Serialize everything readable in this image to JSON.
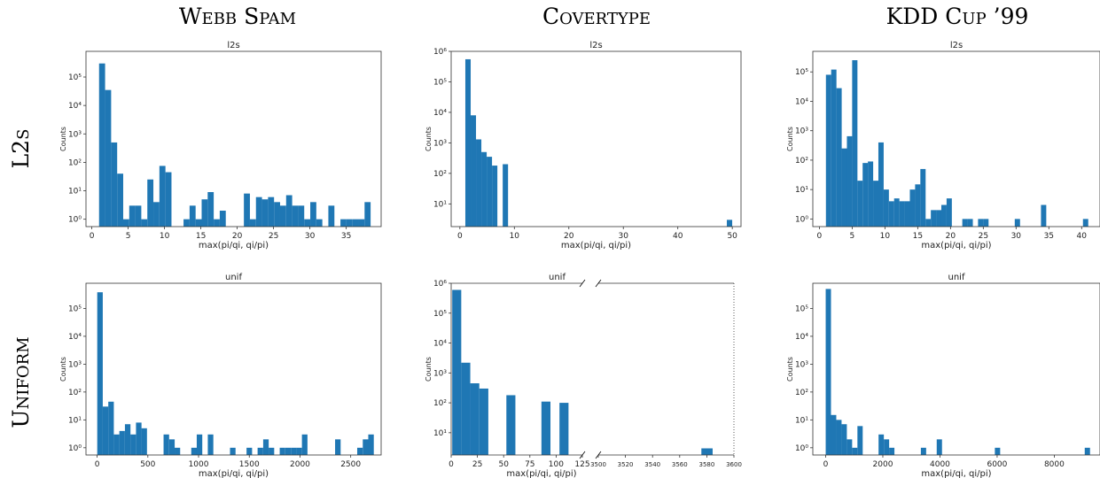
{
  "column_titles": [
    "Webb Spam",
    "Covertype",
    "KDD Cup ’99"
  ],
  "row_titles": [
    "L2s",
    "Uniform"
  ],
  "bar_color": "#1f77b4",
  "chart_data": [
    {
      "type": "bar",
      "title": "l2s",
      "xlabel": "max(pi/qi, qi/pi)",
      "ylabel": "Counts",
      "yscale": "log",
      "xlim": [
        -0.8,
        39.8
      ],
      "ylim": [
        0.55,
        800000
      ],
      "bin_width": 0.83,
      "xticks": [
        0,
        5,
        10,
        15,
        20,
        25,
        30,
        35
      ],
      "yticks": [
        1,
        10,
        100,
        1000,
        10000,
        100000
      ],
      "ytick_labels": [
        "10⁰",
        "10¹",
        "10²",
        "10³",
        "10⁴",
        "10⁵"
      ],
      "x": [
        1.0,
        1.83,
        2.66,
        3.49,
        4.32,
        5.15,
        5.98,
        6.81,
        7.64,
        8.47,
        9.3,
        10.13,
        12.62,
        13.45,
        14.28,
        15.11,
        15.94,
        16.77,
        17.6,
        20.92,
        21.75,
        22.58,
        23.41,
        24.24,
        25.07,
        25.9,
        26.73,
        27.56,
        28.39,
        29.22,
        30.05,
        30.88,
        32.54,
        34.2,
        35.03,
        35.86,
        36.69,
        37.52
      ],
      "values": [
        300000,
        35000,
        500,
        40,
        1,
        3,
        3,
        1,
        25,
        4,
        75,
        45,
        1,
        3,
        1,
        5,
        9,
        1,
        2,
        8,
        1,
        6,
        5,
        6,
        4,
        3,
        7,
        3,
        3,
        1,
        4,
        1,
        3,
        1,
        1,
        1,
        1,
        4
      ]
    },
    {
      "type": "bar",
      "title": "l2s",
      "xlabel": "max(pi/qi, qi/pi)",
      "ylabel": "Counts",
      "yscale": "log",
      "xlim": [
        -1.6,
        51.6
      ],
      "ylim": [
        1.8,
        1000000
      ],
      "bin_width": 0.98,
      "xticks": [
        0,
        10,
        20,
        30,
        40,
        50
      ],
      "yticks": [
        10,
        100,
        1000,
        10000,
        100000,
        1000000
      ],
      "ytick_labels": [
        "10¹",
        "10²",
        "10³",
        "10⁴",
        "10⁵",
        "10⁶"
      ],
      "x": [
        1.0,
        1.98,
        2.96,
        3.94,
        4.92,
        5.9,
        7.86,
        49.0
      ],
      "values": [
        550000,
        8000,
        1300,
        500,
        350,
        180,
        200,
        3
      ]
    },
    {
      "type": "bar",
      "title": "l2s",
      "xlabel": "max(pi/qi, qi/pi)",
      "ylabel": "Counts",
      "yscale": "log",
      "xlim": [
        -1.0,
        42.8
      ],
      "ylim": [
        0.55,
        500000
      ],
      "bin_width": 0.805,
      "xticks": [
        0,
        5,
        10,
        15,
        20,
        25,
        30,
        35,
        40
      ],
      "yticks": [
        1,
        10,
        100,
        1000,
        10000,
        100000
      ],
      "ytick_labels": [
        "10⁰",
        "10¹",
        "10²",
        "10³",
        "10⁴",
        "10⁵"
      ],
      "x": [
        1.0,
        1.8,
        2.6,
        3.4,
        4.2,
        5.0,
        5.8,
        6.6,
        7.4,
        8.2,
        9.0,
        9.8,
        10.6,
        11.4,
        12.2,
        13.0,
        13.8,
        14.6,
        15.4,
        16.2,
        17.0,
        17.8,
        18.6,
        19.4,
        21.8,
        22.6,
        24.2,
        25.0,
        29.8,
        33.8,
        40.2
      ],
      "values": [
        80000,
        120000,
        28000,
        250,
        650,
        250000,
        20,
        80,
        90,
        20,
        400,
        10,
        4,
        5,
        4,
        4,
        10,
        15,
        50,
        1,
        2,
        2,
        3,
        5,
        1,
        1,
        1,
        1,
        1,
        3,
        1
      ]
    },
    {
      "type": "bar",
      "title": "unif",
      "xlabel": "max(pi/qi, qi/pi)",
      "ylabel": "Counts",
      "yscale": "log",
      "xlim": [
        -110,
        2800
      ],
      "ylim": [
        0.55,
        800000
      ],
      "bin_width": 54.5,
      "xticks": [
        0,
        500,
        1000,
        1500,
        2000,
        2500
      ],
      "yticks": [
        1,
        10,
        100,
        1000,
        10000,
        100000
      ],
      "ytick_labels": [
        "10⁰",
        "10¹",
        "10²",
        "10³",
        "10⁴",
        "10⁵"
      ],
      "x": [
        1,
        56,
        110,
        165,
        219,
        274,
        328,
        383,
        437,
        655,
        710,
        764,
        928,
        982,
        1091,
        1310,
        1473,
        1582,
        1637,
        1691,
        1800,
        1855,
        1910,
        1964,
        2019,
        2346,
        2564,
        2619,
        2673
      ],
      "values": [
        380000,
        30,
        45,
        3,
        4,
        7,
        3,
        8,
        5,
        3,
        2,
        1,
        1,
        3,
        3,
        1,
        1,
        1,
        2,
        1,
        1,
        1,
        1,
        1,
        3,
        2,
        1,
        2,
        3
      ]
    },
    {
      "type": "bar",
      "title": "unif",
      "xlabel": "max(pi/qi, qi/pi)",
      "ylabel": "Counts",
      "yscale": "log",
      "broken_x": true,
      "xlim_left": [
        0,
        125
      ],
      "xlim_right": [
        3500,
        3600
      ],
      "ylim": [
        1.8,
        1000000
      ],
      "bin_width": 8.6,
      "bin_width_right": 8.3,
      "xticks_left": [
        0,
        25,
        50,
        75,
        100,
        125
      ],
      "xticks_right": [
        3500,
        3520,
        3540,
        3560,
        3580,
        3600
      ],
      "yticks": [
        10,
        100,
        1000,
        10000,
        100000,
        1000000
      ],
      "ytick_labels": [
        "10¹",
        "10²",
        "10³",
        "10⁴",
        "10⁵",
        "10⁶"
      ],
      "x": [
        1.0,
        9.6,
        18.2,
        26.8,
        52.6,
        86.0,
        103.2,
        3576.0
      ],
      "values": [
        600000,
        2200,
        450,
        300,
        180,
        110,
        100,
        3
      ]
    },
    {
      "type": "bar",
      "title": "unif",
      "xlabel": "max(pi/qi, qi/pi)",
      "ylabel": "Counts",
      "yscale": "log",
      "xlim": [
        -450,
        9600
      ],
      "ylim": [
        0.55,
        800000
      ],
      "bin_width": 185,
      "xticks": [
        0,
        2000,
        4000,
        6000,
        8000
      ],
      "yticks": [
        1,
        10,
        100,
        1000,
        10000,
        100000
      ],
      "ytick_labels": [
        "10⁰",
        "10¹",
        "10²",
        "10³",
        "10⁴",
        "10⁵"
      ],
      "x": [
        1,
        186,
        371,
        556,
        741,
        926,
        1111,
        1851,
        2036,
        2221,
        3331,
        3886,
        5921,
        9066
      ],
      "values": [
        500000,
        15,
        10,
        7,
        2,
        1,
        6,
        3,
        2,
        1,
        1,
        2,
        1,
        1
      ]
    }
  ]
}
